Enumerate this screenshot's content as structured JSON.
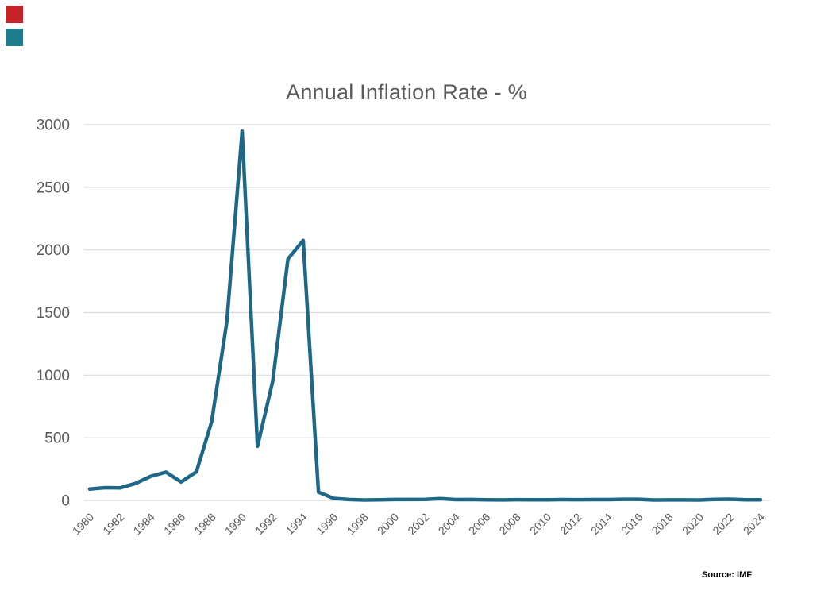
{
  "slide": {
    "accent_squares": [
      {
        "name": "red-square",
        "color": "#C9232A"
      },
      {
        "name": "teal-square",
        "color": "#1D7D8C"
      }
    ]
  },
  "chart_data": {
    "type": "line",
    "title": "Annual Inflation Rate - %",
    "source": "Source: IMF",
    "xlabel": "",
    "ylabel": "",
    "x": [
      1980,
      1981,
      1982,
      1983,
      1984,
      1985,
      1986,
      1987,
      1988,
      1989,
      1990,
      1991,
      1992,
      1993,
      1994,
      1995,
      1996,
      1997,
      1998,
      1999,
      2000,
      2001,
      2002,
      2003,
      2004,
      2005,
      2006,
      2007,
      2008,
      2009,
      2010,
      2011,
      2012,
      2013,
      2014,
      2015,
      2016,
      2017,
      2018,
      2019,
      2020,
      2021,
      2022,
      2023,
      2024
    ],
    "values": [
      90.2,
      101.7,
      100.5,
      135.0,
      192.1,
      226.0,
      147.1,
      228.3,
      629.1,
      1430.7,
      2947.7,
      432.8,
      951.6,
      1928.0,
      2075.9,
      66.0,
      15.8,
      6.9,
      3.2,
      4.9,
      7.0,
      6.8,
      8.5,
      14.7,
      6.6,
      6.9,
      4.2,
      3.6,
      5.7,
      4.9,
      5.0,
      6.6,
      5.4,
      6.2,
      6.3,
      9.0,
      8.7,
      3.4,
      3.7,
      3.7,
      3.2,
      8.3,
      9.3,
      4.6,
      4.4
    ],
    "series_name": "Annual Inflation Rate %",
    "ylim": [
      0,
      3000
    ],
    "y_ticks": [
      0,
      500,
      1000,
      1500,
      2000,
      2500,
      3000
    ],
    "x_tick_step": 2,
    "x_tick_labels": [
      "1980",
      "1982",
      "1984",
      "1986",
      "1988",
      "1990",
      "1992",
      "1994",
      "1996",
      "1998",
      "2000",
      "2002",
      "2004",
      "2006",
      "2008",
      "2010",
      "2012",
      "2014",
      "2016",
      "2018",
      "2020",
      "2022",
      "2024"
    ],
    "x_tick_rotation_deg": -45,
    "grid": true,
    "legend_position": "none",
    "line_color": "#1F6787",
    "gridline_color": "#D9D9D9",
    "tick_label_color": "#595959",
    "title_color": "#595959"
  }
}
